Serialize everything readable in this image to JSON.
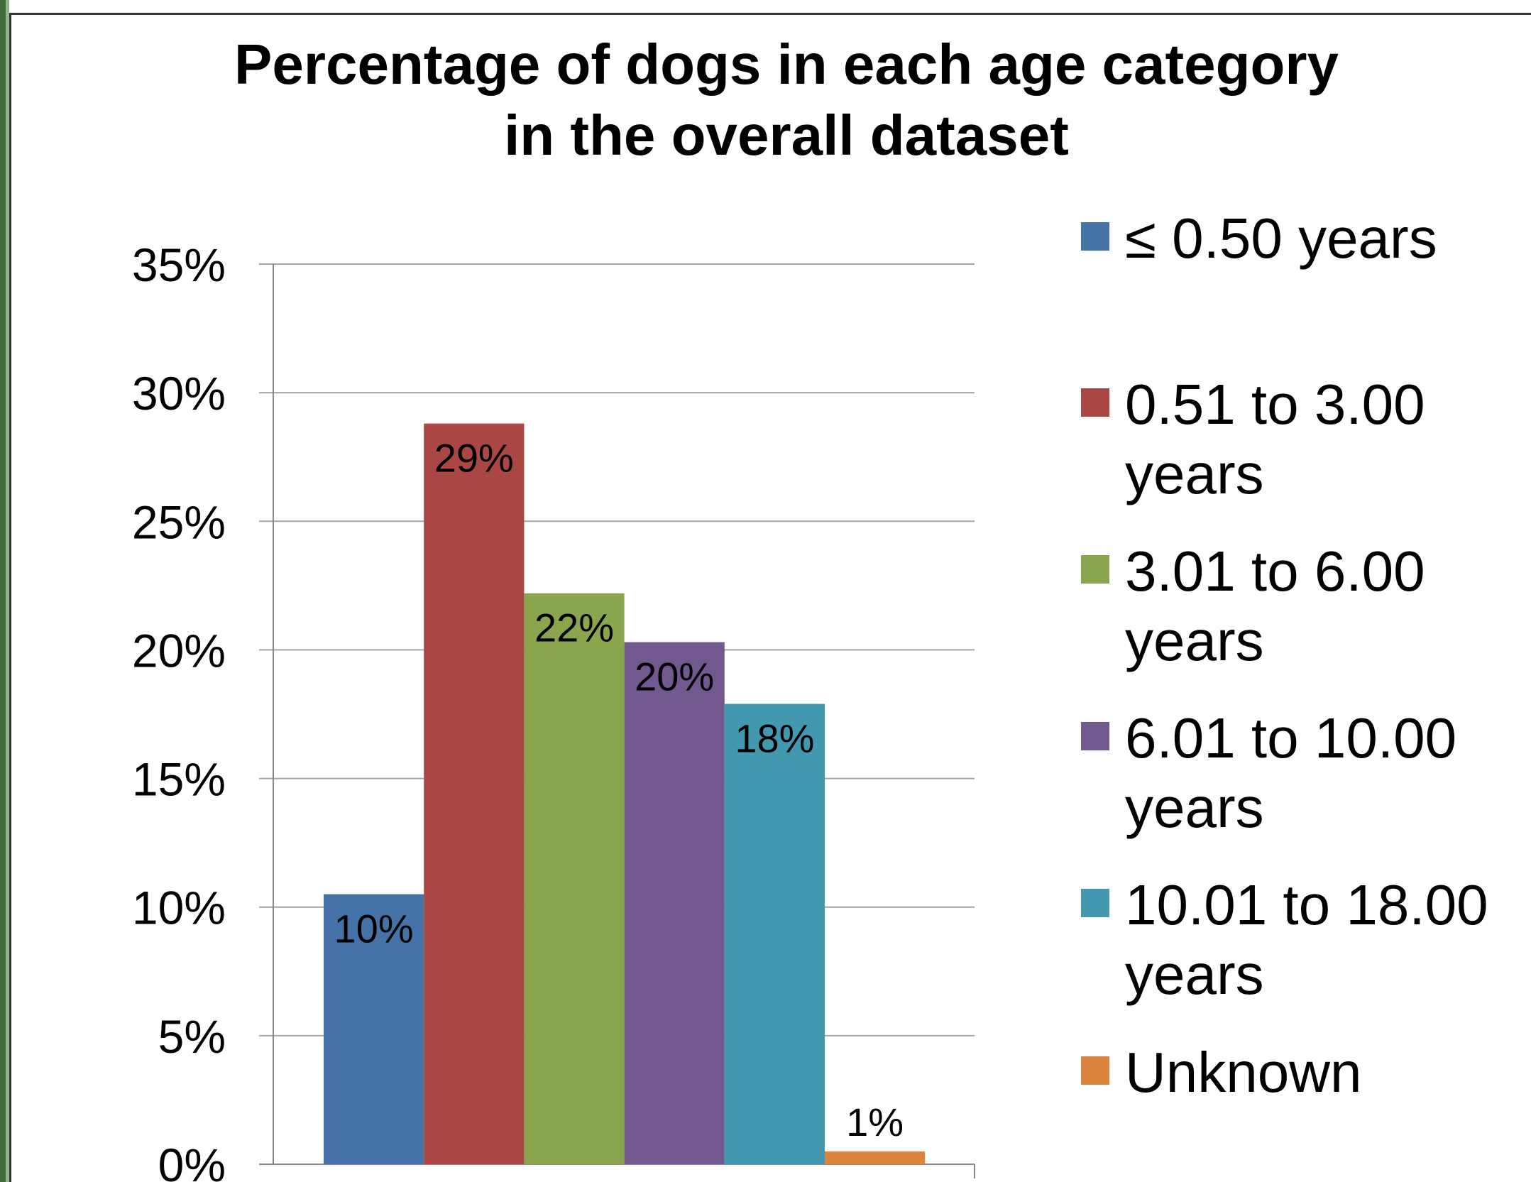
{
  "chart_data": {
    "type": "bar",
    "title": "Percentage of dogs in each age category in the overall dataset",
    "title_lines": [
      "Percentage of dogs in each age category",
      "in the overall dataset"
    ],
    "categories": [
      "≤ 0.50 years",
      "0.51 to 3.00 years",
      "3.01 to 6.00 years",
      "6.01 to 10.00 years",
      "10.01 to 18.00 years",
      "Unknown"
    ],
    "legend_lines": [
      [
        "≤ 0.50 years"
      ],
      [
        "0.51 to 3.00",
        "years"
      ],
      [
        "3.01 to 6.00",
        "years"
      ],
      [
        "6.01 to 10.00",
        "years"
      ],
      [
        "10.01 to 18.00",
        "years"
      ],
      [
        "Unknown"
      ]
    ],
    "values": [
      0.105,
      0.288,
      0.222,
      0.203,
      0.179,
      0.005
    ],
    "data_labels": [
      "10%",
      "29%",
      "22%",
      "20%",
      "18%",
      "1%"
    ],
    "colors": [
      "#4572a7",
      "#aa4643",
      "#89a54e",
      "#71588f",
      "#4198af",
      "#db843d"
    ],
    "ylim": [
      0,
      0.35
    ],
    "yticks": [
      0,
      0.05,
      0.1,
      0.15,
      0.2,
      0.25,
      0.3,
      0.35
    ],
    "ytick_labels": [
      "0%",
      "5%",
      "10%",
      "15%",
      "20%",
      "25%",
      "30%",
      "35%"
    ],
    "xlabel": "",
    "ylabel": "",
    "grid": true,
    "legend_position": "right",
    "gridline_color": "#a6a6a6"
  }
}
